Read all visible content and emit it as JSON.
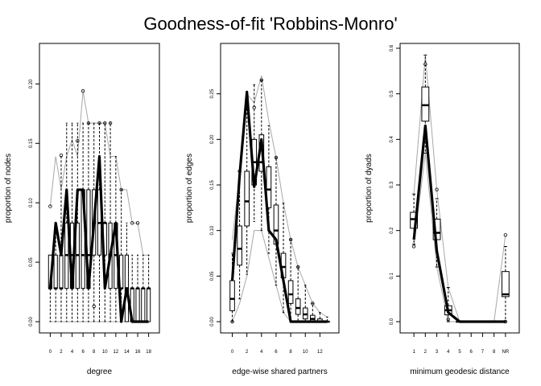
{
  "title": "Goodness-of-fit 'Robbins-Monro'",
  "chart_data": [
    {
      "type": "boxplot",
      "xlabel": "degree",
      "ylabel": "proportion of nodes",
      "x_ticks": [
        "0",
        "2",
        "4",
        "6",
        "8",
        "10",
        "12",
        "14",
        "16",
        "18"
      ],
      "y_ticks": [
        "0.00",
        "0.05",
        "0.10",
        "0.15",
        "0.20"
      ],
      "x_range": [
        -0.5,
        18.5
      ],
      "ylim": [
        0,
        0.23
      ],
      "categories": [
        0,
        1,
        2,
        3,
        4,
        5,
        6,
        7,
        8,
        9,
        10,
        11,
        12,
        13,
        14,
        15,
        16,
        17,
        18
      ],
      "boxes": [
        {
          "x": 0,
          "q1": 0.028,
          "median": 0.028,
          "q3": 0.056,
          "lo": 0,
          "hi": 0.056
        },
        {
          "x": 1,
          "q1": 0.028,
          "median": 0.028,
          "q3": 0.056,
          "lo": 0,
          "hi": 0.083
        },
        {
          "x": 2,
          "q1": 0.028,
          "median": 0.028,
          "q3": 0.056,
          "lo": 0,
          "hi": 0.139
        },
        {
          "x": 3,
          "q1": 0.028,
          "median": 0.056,
          "q3": 0.083,
          "lo": 0,
          "hi": 0.167
        },
        {
          "x": 4,
          "q1": 0.028,
          "median": 0.056,
          "q3": 0.083,
          "lo": 0,
          "hi": 0.167
        },
        {
          "x": 5,
          "q1": 0.028,
          "median": 0.056,
          "q3": 0.083,
          "lo": 0,
          "hi": 0.167
        },
        {
          "x": 6,
          "q1": 0.028,
          "median": 0.056,
          "q3": 0.111,
          "lo": 0,
          "hi": 0.167
        },
        {
          "x": 7,
          "q1": 0.028,
          "median": 0.056,
          "q3": 0.111,
          "lo": 0,
          "hi": 0.167
        },
        {
          "x": 8,
          "q1": 0.056,
          "median": 0.083,
          "q3": 0.111,
          "lo": 0,
          "hi": 0.167
        },
        {
          "x": 9,
          "q1": 0.056,
          "median": 0.083,
          "q3": 0.111,
          "lo": 0,
          "hi": 0.167
        },
        {
          "x": 10,
          "q1": 0.056,
          "median": 0.083,
          "q3": 0.083,
          "lo": 0,
          "hi": 0.167
        },
        {
          "x": 11,
          "q1": 0.028,
          "median": 0.056,
          "q3": 0.083,
          "lo": 0,
          "hi": 0.167
        },
        {
          "x": 12,
          "q1": 0.028,
          "median": 0.056,
          "q3": 0.083,
          "lo": 0,
          "hi": 0.139
        },
        {
          "x": 13,
          "q1": 0.028,
          "median": 0.028,
          "q3": 0.056,
          "lo": 0,
          "hi": 0.111
        },
        {
          "x": 14,
          "q1": 0.0,
          "median": 0.028,
          "q3": 0.056,
          "lo": 0,
          "hi": 0.083
        },
        {
          "x": 15,
          "q1": 0.0,
          "median": 0.028,
          "q3": 0.028,
          "lo": 0,
          "hi": 0.056
        },
        {
          "x": 16,
          "q1": 0.0,
          "median": 0.028,
          "q3": 0.028,
          "lo": 0,
          "hi": 0.056
        },
        {
          "x": 17,
          "q1": 0.0,
          "median": 0.028,
          "q3": 0.028,
          "lo": 0,
          "hi": 0.056
        },
        {
          "x": 18,
          "q1": 0.0,
          "median": 0.028,
          "q3": 0.028,
          "lo": 0,
          "hi": 0.056
        }
      ],
      "outliers": [
        [
          0,
          0.097
        ],
        [
          2,
          0.14
        ],
        [
          5,
          0.152
        ],
        [
          6,
          0.194
        ],
        [
          7,
          0.167
        ],
        [
          8,
          0.013
        ],
        [
          9,
          0.167
        ],
        [
          10,
          0.167
        ],
        [
          11,
          0.167
        ],
        [
          13,
          0.111
        ],
        [
          15,
          0.083
        ],
        [
          16,
          0.083
        ]
      ],
      "envelope_lower": [
        0,
        0,
        0,
        0,
        0,
        0,
        0,
        0,
        0,
        0,
        0,
        0,
        0,
        0,
        0,
        0,
        0,
        0,
        0
      ],
      "envelope_upper": [
        0.097,
        0.139,
        0.111,
        0.139,
        0.153,
        0.139,
        0.194,
        0.167,
        0.167,
        0.167,
        0.167,
        0.139,
        0.139,
        0.111,
        0.111,
        0.083,
        0.083,
        0.056,
        0.056
      ],
      "observed": [
        0.028,
        0.083,
        0.056,
        0.111,
        0.028,
        0.111,
        0.111,
        0.028,
        0.083,
        0.139,
        0.028,
        0.056,
        0.083,
        0.0,
        0.028,
        0.0,
        0.0,
        0.0,
        0.0
      ]
    },
    {
      "type": "boxplot",
      "xlabel": "edge-wise shared partners",
      "ylabel": "proportion of edges",
      "x_ticks": [
        "0",
        "2",
        "4",
        "6",
        "8",
        "10",
        "12"
      ],
      "y_ticks": [
        "0.00",
        "0.05",
        "0.10",
        "0.15",
        "0.20",
        "0.25"
      ],
      "x_range": [
        -0.5,
        13.5
      ],
      "ylim": [
        0,
        0.3
      ],
      "categories": [
        0,
        1,
        2,
        3,
        4,
        5,
        6,
        7,
        8,
        9,
        10,
        11,
        12,
        13
      ],
      "boxes": [
        {
          "x": 0,
          "q1": 0.012,
          "median": 0.025,
          "q3": 0.045,
          "lo": 0,
          "hi": 0.075
        },
        {
          "x": 1,
          "q1": 0.062,
          "median": 0.08,
          "q3": 0.105,
          "lo": 0.025,
          "hi": 0.16
        },
        {
          "x": 2,
          "q1": 0.105,
          "median": 0.132,
          "q3": 0.165,
          "lo": 0.052,
          "hi": 0.25
        },
        {
          "x": 3,
          "q1": 0.15,
          "median": 0.175,
          "q3": 0.2,
          "lo": 0.11,
          "hi": 0.26
        },
        {
          "x": 4,
          "q1": 0.165,
          "median": 0.175,
          "q3": 0.205,
          "lo": 0.1,
          "hi": 0.265
        },
        {
          "x": 5,
          "q1": 0.125,
          "median": 0.145,
          "q3": 0.17,
          "lo": 0.075,
          "hi": 0.215
        },
        {
          "x": 6,
          "q1": 0.085,
          "median": 0.1,
          "q3": 0.128,
          "lo": 0.04,
          "hi": 0.18
        },
        {
          "x": 7,
          "q1": 0.048,
          "median": 0.06,
          "q3": 0.075,
          "lo": 0.01,
          "hi": 0.13
        },
        {
          "x": 8,
          "q1": 0.02,
          "median": 0.03,
          "q3": 0.045,
          "lo": 0,
          "hi": 0.09
        },
        {
          "x": 9,
          "q1": 0.008,
          "median": 0.015,
          "q3": 0.025,
          "lo": 0,
          "hi": 0.06
        },
        {
          "x": 10,
          "q1": 0.003,
          "median": 0.008,
          "q3": 0.015,
          "lo": 0,
          "hi": 0.04
        },
        {
          "x": 11,
          "q1": 0,
          "median": 0.003,
          "q3": 0.007,
          "lo": 0,
          "hi": 0.02
        },
        {
          "x": 12,
          "q1": 0,
          "median": 0,
          "q3": 0.003,
          "lo": 0,
          "hi": 0.01
        },
        {
          "x": 13,
          "q1": 0,
          "median": 0,
          "q3": 0,
          "lo": 0,
          "hi": 0.005
        }
      ],
      "outliers": [
        [
          0,
          0.0
        ],
        [
          1,
          0.165
        ],
        [
          3,
          0.235
        ],
        [
          4,
          0.265
        ],
        [
          6,
          0.18
        ],
        [
          8,
          0.09
        ],
        [
          9,
          0.06
        ],
        [
          11,
          0.02
        ]
      ],
      "envelope_lower": [
        0,
        0.02,
        0.05,
        0.1,
        0.1,
        0.07,
        0.04,
        0.01,
        0,
        0,
        0,
        0,
        0,
        0
      ],
      "envelope_upper": [
        0.09,
        0.16,
        0.25,
        0.24,
        0.27,
        0.22,
        0.18,
        0.13,
        0.09,
        0.06,
        0.04,
        0.02,
        0.01,
        0.005
      ],
      "observed": [
        0.045,
        0.16,
        0.252,
        0.148,
        0.2,
        0.1,
        0.09,
        0.045,
        0,
        0,
        0,
        0,
        0,
        0
      ]
    },
    {
      "type": "boxplot",
      "xlabel": "minimum geodesic distance",
      "ylabel": "proportion of dyads",
      "x_ticks": [
        "1",
        "2",
        "3",
        "4",
        "5",
        "6",
        "7",
        "8",
        "NR"
      ],
      "y_ticks": [
        "0.0",
        "0.1",
        "0.2",
        "0.3",
        "0.4",
        "0.5",
        "0.6"
      ],
      "x_range": [
        0.5,
        9.5
      ],
      "ylim": [
        0,
        0.6
      ],
      "categories": [
        1,
        2,
        3,
        4,
        5,
        6,
        7,
        8,
        9
      ],
      "boxes": [
        {
          "x": 1,
          "q1": 0.205,
          "median": 0.225,
          "q3": 0.24,
          "lo": 0.17,
          "hi": 0.28
        },
        {
          "x": 2,
          "q1": 0.44,
          "median": 0.475,
          "q3": 0.515,
          "lo": 0.37,
          "hi": 0.585
        },
        {
          "x": 3,
          "q1": 0.18,
          "median": 0.195,
          "q3": 0.225,
          "lo": 0.12,
          "hi": 0.27
        },
        {
          "x": 4,
          "q1": 0.015,
          "median": 0.025,
          "q3": 0.035,
          "lo": 0,
          "hi": 0.075
        },
        {
          "x": 5,
          "q1": 0,
          "median": 0,
          "q3": 0,
          "lo": 0,
          "hi": 0
        },
        {
          "x": 6,
          "q1": 0,
          "median": 0,
          "q3": 0,
          "lo": 0,
          "hi": 0
        },
        {
          "x": 7,
          "q1": 0,
          "median": 0,
          "q3": 0,
          "lo": 0,
          "hi": 0
        },
        {
          "x": 8,
          "q1": 0,
          "median": 0,
          "q3": 0,
          "lo": 0,
          "hi": 0
        },
        {
          "x": 9,
          "q1": 0.055,
          "median": 0.06,
          "q3": 0.11,
          "lo": 0,
          "hi": 0.165
        }
      ],
      "outliers": [
        [
          1,
          0.165
        ],
        [
          2,
          0.565
        ],
        [
          3,
          0.29
        ],
        [
          4,
          0.005
        ],
        [
          9,
          0.19
        ],
        [
          9,
          0.0
        ]
      ],
      "envelope_lower": [
        0.165,
        0.37,
        0.12,
        0,
        0,
        0,
        0,
        0,
        0
      ],
      "envelope_upper": [
        0.28,
        0.585,
        0.29,
        0.075,
        0,
        0,
        0,
        0,
        0.19
      ],
      "observed": [
        0.18,
        0.43,
        0.155,
        0.02,
        0,
        0,
        0,
        0,
        0
      ]
    }
  ]
}
